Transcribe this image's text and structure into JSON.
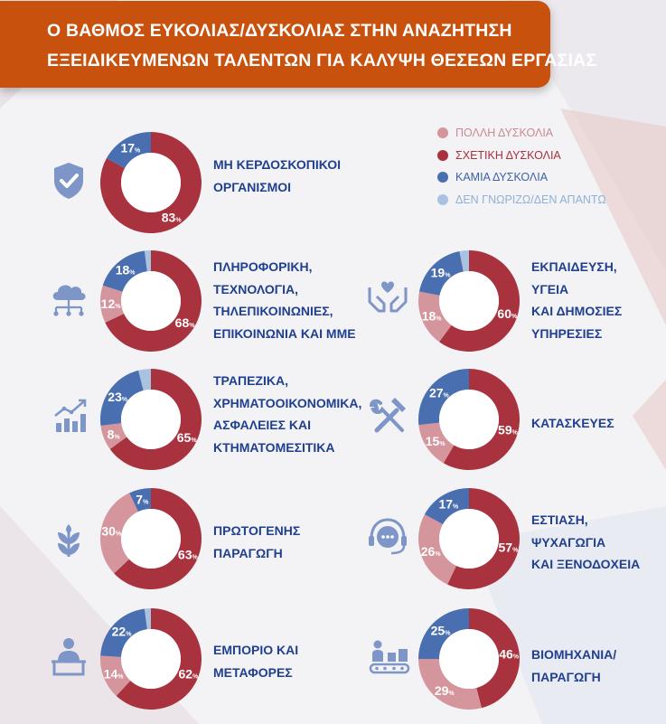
{
  "title": {
    "line1": "Ο ΒΑΘΜΟΣ ΕΥΚΟΛΙΑΣ/ΔΥΣΚΟΛΙΑΣ ΣΤΗΝ ΑΝΑΖΗΤΗΣΗ",
    "line2": "ΕΞΕΙΔΙΚΕΥΜΕΝΩΝ ΤΑΛΕΝΤΩΝ ΓΙΑ ΚΑΛΥΨΗ ΘΕΣΕΩΝ ΕΡΓΑΣΙΑΣ"
  },
  "legend": [
    {
      "label": "ΠΟΛΛΗ ΔΥΣΚΟΛΙΑ",
      "color": "#d4959c"
    },
    {
      "label": "ΣΧΕΤΙΚΗ ΔΥΣΚΟΛΙΑ",
      "color": "#a8323e"
    },
    {
      "label": "ΚΑΜΙΑ ΔΥΣΚΟΛΙΑ",
      "color": "#4a6fb0"
    },
    {
      "label": "ΔΕΝ ΓΝΩΡΙΖΩ/ΔΕΝ ΑΠΑΝΤΩ",
      "color": "#a9c2e0"
    }
  ],
  "percent_suffix": "%",
  "chart_data": [
    {
      "type": "pie",
      "sector": [
        "ΜΗ ΚΕΡΔΟΣΚΟΠΙΚΟΙ",
        "ΟΡΓΑΝΙΣΜΟΙ"
      ],
      "icon": "shield-check-icon",
      "values": {
        "very_difficult": 0,
        "somewhat_difficult": 83,
        "no_difficulty": 17,
        "dont_know": 0
      },
      "labels": {
        "very_difficult": "",
        "somewhat_difficult": "83",
        "no_difficulty": "17"
      }
    },
    {
      "type": "pie",
      "sector": [
        "ΠΛΗΡΟΦΟΡΙΚΗ,",
        "ΤΕΧΝΟΛΟΓΙΑ,",
        "ΤΗΛΕΠΙΚΟΙΝΩΝΙΕΣ,",
        "ΕΠΙΚΟΙΝΩΝΙΑ ΚΑΙ ΜΜΕ"
      ],
      "icon": "cloud-network-icon",
      "values": {
        "very_difficult": 12,
        "somewhat_difficult": 68,
        "no_difficulty": 18,
        "dont_know": 2
      },
      "labels": {
        "very_difficult": "12",
        "somewhat_difficult": "68",
        "no_difficulty": "18"
      }
    },
    {
      "type": "pie",
      "sector": [
        "ΕΚΠΑΙΔΕΥΣΗ,",
        "ΥΓΕΙΑ",
        "ΚΑΙ ΔΗΜΟΣΙΕΣ",
        "ΥΠΗΡΕΣΙΕΣ"
      ],
      "icon": "hands-heart-icon",
      "values": {
        "very_difficult": 18,
        "somewhat_difficult": 60,
        "no_difficulty": 19,
        "dont_know": 3
      },
      "labels": {
        "very_difficult": "18",
        "somewhat_difficult": "60",
        "no_difficulty": "19"
      }
    },
    {
      "type": "pie",
      "sector": [
        "ΤΡΑΠΕΖΙΚΑ,",
        "ΧΡΗΜΑΤΟΟΙΚΟΝΟΜΙΚΑ,",
        "ΑΣΦΑΛΕΙΕΣ ΚΑΙ",
        "ΚΤΗΜΑΤΟΜΕΣΙΤΙΚΑ"
      ],
      "icon": "growth-chart-icon",
      "values": {
        "very_difficult": 8,
        "somewhat_difficult": 65,
        "no_difficulty": 23,
        "dont_know": 4
      },
      "labels": {
        "very_difficult": "8",
        "somewhat_difficult": "65",
        "no_difficulty": "23"
      }
    },
    {
      "type": "pie",
      "sector": [
        "ΚΑΤΑΣΚΕΥΕΣ"
      ],
      "icon": "hammer-wrench-icon",
      "values": {
        "very_difficult": 15,
        "somewhat_difficult": 59,
        "no_difficulty": 27,
        "dont_know": 0
      },
      "labels": {
        "very_difficult": "15",
        "somewhat_difficult": "59",
        "no_difficulty": "27"
      }
    },
    {
      "type": "pie",
      "sector": [
        "ΠΡΩΤΟΓΕΝΗΣ",
        "ΠΑΡΑΓΩΓΗ"
      ],
      "icon": "wheat-icon",
      "values": {
        "very_difficult": 30,
        "somewhat_difficult": 63,
        "no_difficulty": 7,
        "dont_know": 0
      },
      "labels": {
        "very_difficult": "30",
        "somewhat_difficult": "63",
        "no_difficulty": "7"
      }
    },
    {
      "type": "pie",
      "sector": [
        "ΕΣΤΙΑΣΗ,",
        "ΨΥΧΑΓΩΓΙΑ",
        "ΚΑΙ ΞΕΝΟΔΟΧΕΙΑ"
      ],
      "icon": "chat-headset-icon",
      "values": {
        "very_difficult": 26,
        "somewhat_difficult": 57,
        "no_difficulty": 17,
        "dont_know": 0
      },
      "labels": {
        "very_difficult": "26",
        "somewhat_difficult": "57",
        "no_difficulty": "17"
      }
    },
    {
      "type": "pie",
      "sector": [
        "ΕΜΠΟΡΙΟ ΚΑΙ",
        "ΜΕΤΑΦΟΡΕΣ"
      ],
      "icon": "shopkeeper-icon",
      "values": {
        "very_difficult": 14,
        "somewhat_difficult": 62,
        "no_difficulty": 22,
        "dont_know": 2
      },
      "labels": {
        "very_difficult": "14",
        "somewhat_difficult": "62",
        "no_difficulty": "22"
      }
    },
    {
      "type": "pie",
      "sector": [
        "ΒΙΟΜΗΧΑΝΙΑ/",
        "ΠΑΡΑΓΩΓΗ"
      ],
      "icon": "conveyor-worker-icon",
      "values": {
        "very_difficult": 29,
        "somewhat_difficult": 46,
        "no_difficulty": 25,
        "dont_know": 0
      },
      "labels": {
        "very_difficult": "29",
        "somewhat_difficult": "46",
        "no_difficulty": "25"
      }
    }
  ]
}
